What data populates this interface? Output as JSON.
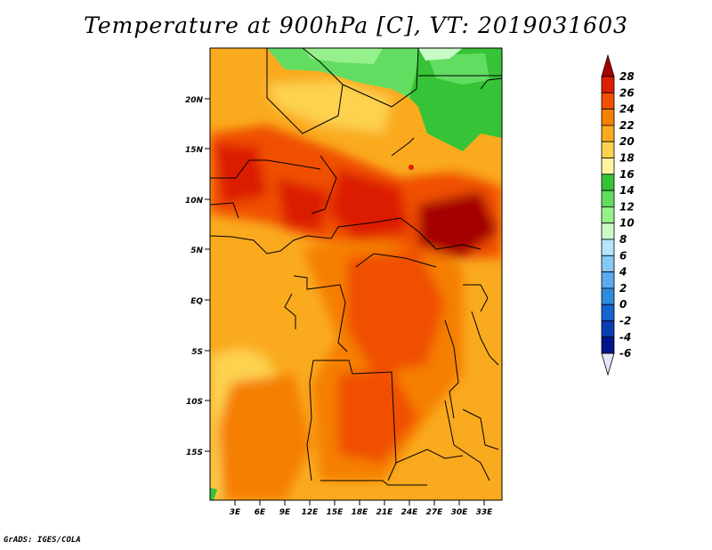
{
  "title": "Temperature at 900hPa [C], VT: 2019031603",
  "credit": "GrADS: IGES/COLA",
  "map": {
    "lat_labels": [
      "20N",
      "15N",
      "10N",
      "5N",
      "EQ",
      "5S",
      "10S",
      "15S"
    ],
    "lon_labels": [
      "3E",
      "6E",
      "9E",
      "12E",
      "15E",
      "18E",
      "21E",
      "24E",
      "27E",
      "30E",
      "33E"
    ]
  },
  "colorbar": {
    "levels": [
      "28",
      "26",
      "24",
      "22",
      "20",
      "18",
      "16",
      "14",
      "12",
      "10",
      "8",
      "6",
      "4",
      "2",
      "0",
      "-2",
      "-4",
      "-6"
    ],
    "colors": [
      "#a50000",
      "#dc1e00",
      "#f05000",
      "#f57f00",
      "#faaa1e",
      "#fcd250",
      "#fff5a0",
      "#37c337",
      "#62dd62",
      "#96f08c",
      "#c8fac8",
      "#b4e6fa",
      "#87c8f5",
      "#5aaaf0",
      "#2d8cdc",
      "#1464d2",
      "#0a3cb4",
      "#00148c",
      "#e6e6fa"
    ]
  }
}
